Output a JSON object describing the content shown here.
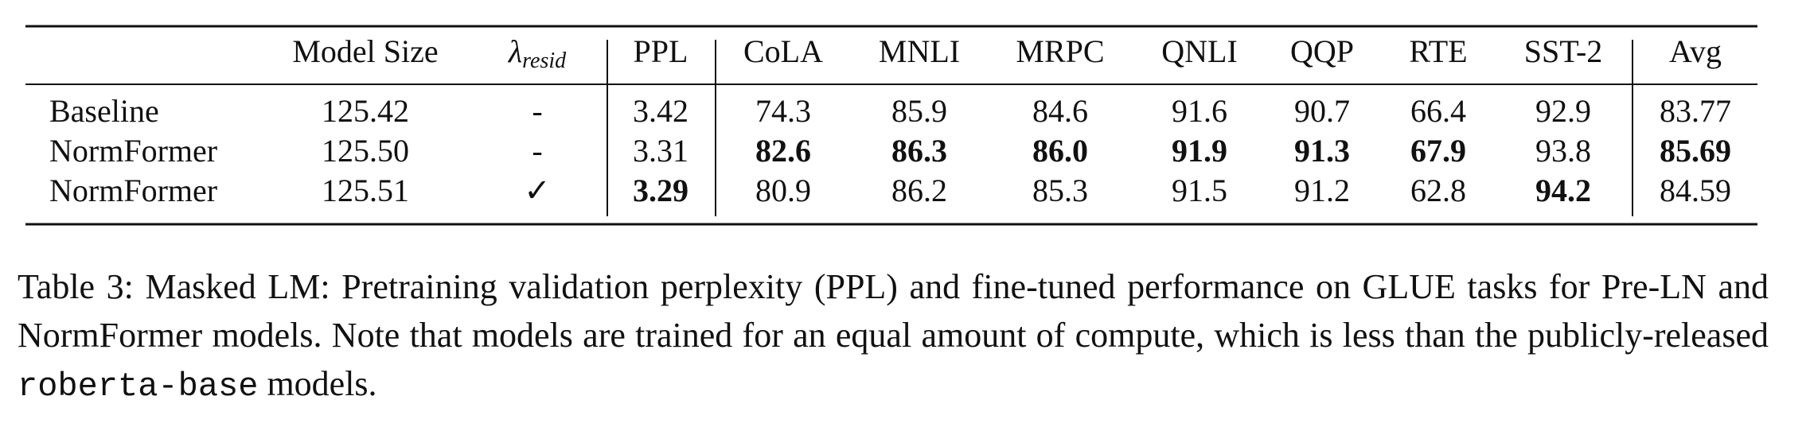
{
  "table": {
    "header": [
      "Model Size",
      {
        "symbol": "λ",
        "subscript": "resid"
      },
      "PPL",
      "CoLA",
      "MNLI",
      "MRPC",
      "QNLI",
      "QQP",
      "RTE",
      "SST-2",
      "Avg"
    ],
    "rows": [
      {
        "label": "Baseline",
        "cells": [
          "125.42",
          "-",
          "3.42",
          "74.3",
          "85.9",
          "84.6",
          "91.6",
          "90.7",
          "66.4",
          "92.9",
          "83.77"
        ],
        "bold": []
      },
      {
        "label": "NormFormer",
        "cells": [
          "125.50",
          "-",
          "3.31",
          "82.6",
          "86.3",
          "86.0",
          "91.9",
          "91.3",
          "67.9",
          "93.8",
          "85.69"
        ],
        "bold": [
          3,
          4,
          5,
          6,
          7,
          8,
          10
        ]
      },
      {
        "label": "NormFormer",
        "cells": [
          "125.51",
          "✓",
          "3.29",
          "80.9",
          "86.2",
          "85.3",
          "91.5",
          "91.2",
          "62.8",
          "94.2",
          "84.59"
        ],
        "bold": [
          2,
          9
        ]
      }
    ]
  },
  "caption": {
    "label": "Table 3:",
    "text": "Masked LM: Pretraining validation perplexity (PPL) and fine-tuned performance on GLUE tasks for Pre-LN and NormFormer models.  Note that models are trained for an equal amount of compute, which is less than the publicly-released",
    "code": "roberta-base",
    "end": "models."
  }
}
